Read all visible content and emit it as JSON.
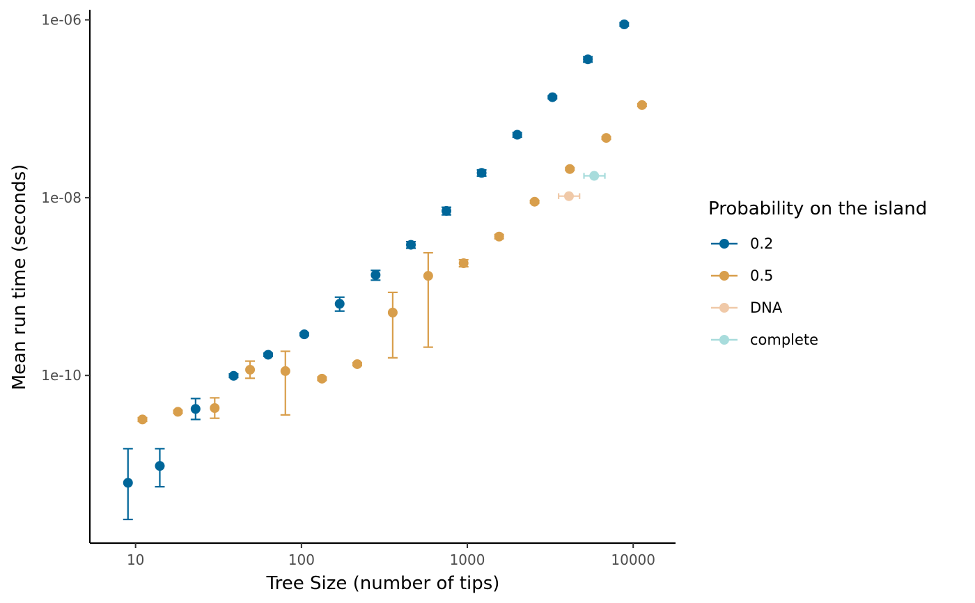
{
  "chart_data": {
    "type": "scatter",
    "title": "",
    "xlabel": "Tree Size (number of tips)",
    "ylabel": "Mean run time (seconds)",
    "x_scale": "log10",
    "y_scale": "log10",
    "xlim": [
      5.3,
      18000
    ],
    "ylim": [
      1.3e-12,
      1.3e-06
    ],
    "x_ticks": [
      {
        "value": 10,
        "label": "10"
      },
      {
        "value": 100,
        "label": "100"
      },
      {
        "value": 1000,
        "label": "1000"
      },
      {
        "value": 10000,
        "label": "10000"
      }
    ],
    "y_ticks": [
      {
        "value": 1e-10,
        "label": "1e-10"
      },
      {
        "value": 1e-08,
        "label": "1e-08"
      },
      {
        "value": 1e-06,
        "label": "1e-06"
      }
    ],
    "grid": false,
    "legend": {
      "title": "Probability on the island",
      "position": "right"
    },
    "series": [
      {
        "name": "0.2",
        "color": "#006699",
        "points": [
          {
            "x": 9,
            "y": 6.2e-12,
            "ylo": 2.4e-12,
            "yhi": 1.5e-11
          },
          {
            "x": 14,
            "y": 9.6e-12,
            "ylo": 5.6e-12,
            "yhi": 1.5e-11
          },
          {
            "x": 23,
            "y": 4.2e-11,
            "ylo": 3.2e-11,
            "yhi": 5.5e-11
          },
          {
            "x": 39,
            "y": 9.9e-11,
            "ylo": 9.5e-11,
            "yhi": 1.04e-10
          },
          {
            "x": 63,
            "y": 1.71e-10,
            "ylo": 1.64e-10,
            "yhi": 1.78e-10
          },
          {
            "x": 104,
            "y": 2.9e-10,
            "ylo": 2.8e-10,
            "yhi": 3e-10
          },
          {
            "x": 170,
            "y": 6.4e-10,
            "ylo": 5.3e-10,
            "yhi": 7.6e-10
          },
          {
            "x": 280,
            "y": 1.35e-09,
            "ylo": 1.18e-09,
            "yhi": 1.52e-09
          },
          {
            "x": 457,
            "y": 2.95e-09,
            "ylo": 2.7e-09,
            "yhi": 3.2e-09
          },
          {
            "x": 748,
            "y": 7.1e-09,
            "ylo": 6.4e-09,
            "yhi": 7.8e-09
          },
          {
            "x": 1220,
            "y": 1.9e-08,
            "ylo": 1.75e-08,
            "yhi": 2.05e-08
          },
          {
            "x": 2000,
            "y": 5.1e-08,
            "ylo": 4.8e-08,
            "yhi": 5.4e-08
          },
          {
            "x": 3260,
            "y": 1.35e-07,
            "ylo": 1.3e-07,
            "yhi": 1.4e-07
          },
          {
            "x": 5330,
            "y": 3.6e-07,
            "ylo": 3.35e-07,
            "yhi": 3.85e-07
          },
          {
            "x": 8830,
            "y": 8.9e-07,
            "ylo": 8.5e-07,
            "yhi": 9.3e-07
          }
        ]
      },
      {
        "name": "0.5",
        "color": "#D89E4B",
        "points": [
          {
            "x": 11,
            "y": 3.2e-11,
            "ylo": 3.05e-11,
            "yhi": 3.35e-11
          },
          {
            "x": 18,
            "y": 3.9e-11,
            "ylo": 3.75e-11,
            "yhi": 4.05e-11
          },
          {
            "x": 30,
            "y": 4.3e-11,
            "ylo": 3.3e-11,
            "yhi": 5.6e-11
          },
          {
            "x": 49,
            "y": 1.16e-10,
            "ylo": 9.3e-11,
            "yhi": 1.45e-10
          },
          {
            "x": 80,
            "y": 1.12e-10,
            "ylo": 3.6e-11,
            "yhi": 1.87e-10
          },
          {
            "x": 133,
            "y": 9.2e-11,
            "ylo": 8.8e-11,
            "yhi": 9.6e-11
          },
          {
            "x": 217,
            "y": 1.34e-10,
            "ylo": 1.29e-10,
            "yhi": 1.39e-10
          },
          {
            "x": 355,
            "y": 5.1e-10,
            "ylo": 1.58e-10,
            "yhi": 8.6e-10
          },
          {
            "x": 581,
            "y": 1.32e-09,
            "ylo": 2.08e-10,
            "yhi": 2.4e-09
          },
          {
            "x": 950,
            "y": 1.83e-09,
            "ylo": 1.67e-09,
            "yhi": 2e-09
          },
          {
            "x": 1555,
            "y": 3.65e-09,
            "ylo": 3.45e-09,
            "yhi": 3.85e-09
          },
          {
            "x": 2545,
            "y": 9e-09,
            "ylo": 8.7e-09,
            "yhi": 9.3e-09
          },
          {
            "x": 4150,
            "y": 2.1e-08,
            "ylo": 2.03e-08,
            "yhi": 2.17e-08
          },
          {
            "x": 6880,
            "y": 4.7e-08,
            "ylo": 4.55e-08,
            "yhi": 4.85e-08
          },
          {
            "x": 11300,
            "y": 1.1e-07,
            "ylo": 1.06e-07,
            "yhi": 1.14e-07
          }
        ]
      },
      {
        "name": "DNA",
        "color": "#F0C9A8",
        "points": [
          {
            "x": 4100,
            "y": 1.04e-08,
            "xlo": 3550,
            "xhi": 4750
          }
        ]
      },
      {
        "name": "complete",
        "color": "#A8DCDC",
        "points": [
          {
            "x": 5820,
            "y": 1.76e-08,
            "xlo": 5050,
            "xhi": 6750
          }
        ]
      }
    ]
  }
}
